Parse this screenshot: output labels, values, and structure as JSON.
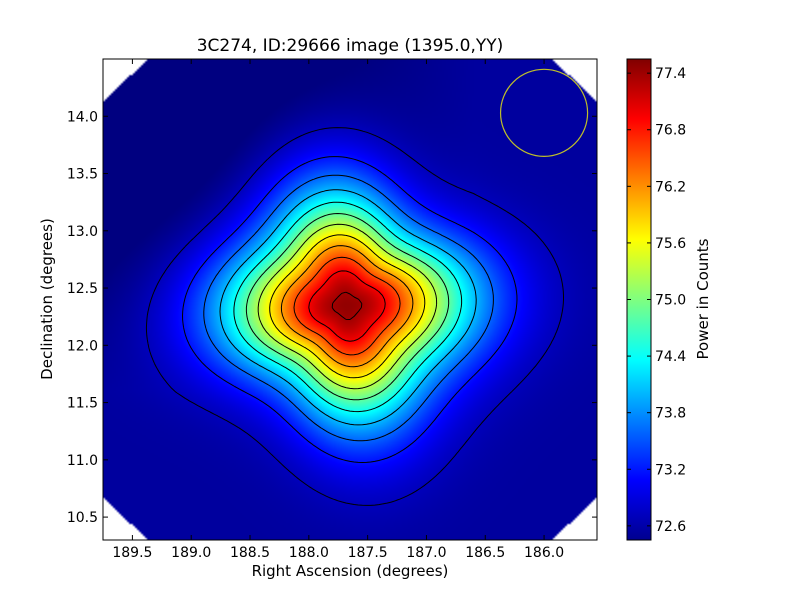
{
  "chart_data": {
    "type": "heatmap",
    "title": "3C274, ID:29666 image (1395.0,YY)",
    "xlabel": "Right Ascension (degrees)",
    "ylabel": "Declination (degrees)",
    "xlim": [
      189.75,
      185.55
    ],
    "ylim": [
      10.3,
      14.5
    ],
    "xticks": [
      "189.5",
      "189.0",
      "188.5",
      "188.0",
      "187.5",
      "187.0",
      "186.5",
      "186.0"
    ],
    "yticks": [
      "10.5",
      "11.0",
      "11.5",
      "12.0",
      "12.5",
      "13.0",
      "13.5",
      "14.0"
    ],
    "colormap": "jet",
    "colorbar": {
      "label": "Power in Counts",
      "range": [
        72.45,
        77.55
      ],
      "ticks": [
        "72.6",
        "73.2",
        "73.8",
        "74.4",
        "75.0",
        "75.6",
        "76.2",
        "76.8",
        "77.4"
      ]
    },
    "peak": {
      "ra": 187.68,
      "dec": 12.35,
      "value": 77.5
    },
    "background_value": 72.6,
    "contours": "black lines around the central source",
    "beam_marker": {
      "ra": 186.0,
      "dec": 14.03,
      "radius_deg": 0.37,
      "color": "#bfbf2a"
    }
  }
}
